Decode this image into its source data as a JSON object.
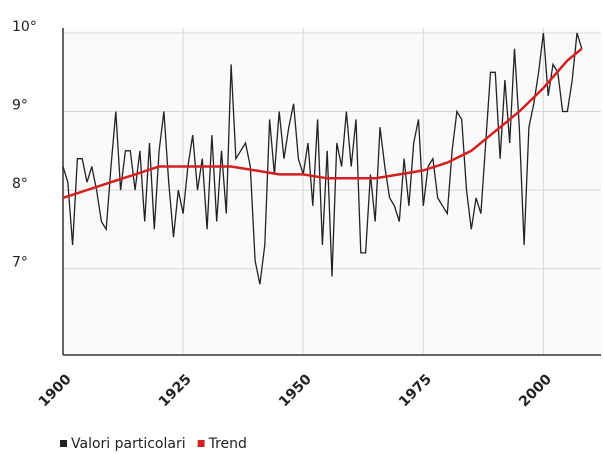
{
  "chart_data": {
    "type": "line",
    "xlim": [
      1900,
      2012
    ],
    "xticks": [
      1900,
      1925,
      1950,
      1975,
      2000
    ],
    "ylim": [
      5.9,
      10
    ],
    "yticks": [
      {
        "value": 7,
        "label": "7°"
      },
      {
        "value": 8,
        "label": "8°"
      },
      {
        "value": 9,
        "label": "9°"
      },
      {
        "value": 10,
        "label": "10°"
      }
    ],
    "grid": true,
    "series": [
      {
        "name": "Valori particolari",
        "color": "#222222",
        "x": [
          1900,
          1901,
          1902,
          1903,
          1904,
          1905,
          1906,
          1907,
          1908,
          1909,
          1910,
          1911,
          1912,
          1913,
          1914,
          1915,
          1916,
          1917,
          1918,
          1919,
          1920,
          1921,
          1922,
          1923,
          1924,
          1925,
          1926,
          1927,
          1928,
          1929,
          1930,
          1931,
          1932,
          1933,
          1934,
          1935,
          1936,
          1937,
          1938,
          1939,
          1940,
          1941,
          1942,
          1943,
          1944,
          1945,
          1946,
          1947,
          1948,
          1949,
          1950,
          1951,
          1952,
          1953,
          1954,
          1955,
          1956,
          1957,
          1958,
          1959,
          1960,
          1961,
          1962,
          1963,
          1964,
          1965,
          1966,
          1967,
          1968,
          1969,
          1970,
          1971,
          1972,
          1973,
          1974,
          1975,
          1976,
          1977,
          1978,
          1979,
          1980,
          1981,
          1982,
          1983,
          1984,
          1985,
          1986,
          1987,
          1988,
          1989,
          1990,
          1991,
          1992,
          1993,
          1994,
          1995,
          1996,
          1997,
          1998,
          1999,
          2000,
          2001,
          2002,
          2003,
          2004,
          2005,
          2006,
          2007,
          2008
        ],
        "values": [
          8.3,
          8.1,
          7.3,
          8.4,
          8.4,
          8.1,
          8.3,
          8.0,
          7.6,
          7.5,
          8.3,
          9.0,
          8.0,
          8.5,
          8.5,
          8.0,
          8.5,
          7.6,
          8.6,
          7.5,
          8.5,
          9.0,
          8.1,
          7.4,
          8.0,
          7.7,
          8.3,
          8.7,
          8.0,
          8.4,
          7.5,
          8.7,
          7.6,
          8.5,
          7.7,
          9.6,
          8.4,
          8.5,
          8.6,
          8.3,
          7.1,
          6.8,
          7.3,
          8.9,
          8.2,
          9.0,
          8.4,
          8.8,
          9.1,
          8.4,
          8.2,
          8.6,
          7.8,
          8.9,
          7.3,
          8.5,
          6.9,
          8.6,
          8.3,
          9.0,
          8.3,
          8.9,
          7.2,
          7.2,
          8.2,
          7.6,
          8.8,
          8.3,
          7.9,
          7.8,
          7.6,
          8.4,
          7.8,
          8.6,
          8.9,
          7.8,
          8.3,
          8.4,
          7.9,
          7.8,
          7.7,
          8.5,
          9.0,
          8.9,
          8.0,
          7.5,
          7.9,
          7.7,
          8.6,
          9.5,
          9.5,
          8.4,
          9.4,
          8.6,
          9.8,
          8.8,
          7.3,
          8.8,
          9.1,
          9.5,
          10.0,
          9.2,
          9.6,
          9.5,
          9.0,
          9.0,
          9.4,
          10.0,
          9.8
        ]
      },
      {
        "name": "Trend",
        "color": "#d42020",
        "x": [
          1900,
          1905,
          1910,
          1915,
          1920,
          1925,
          1930,
          1935,
          1940,
          1945,
          1950,
          1955,
          1960,
          1965,
          1970,
          1975,
          1980,
          1985,
          1990,
          1995,
          2000,
          2005,
          2008
        ],
        "values": [
          7.9,
          8.0,
          8.1,
          8.2,
          8.3,
          8.3,
          8.3,
          8.3,
          8.25,
          8.2,
          8.2,
          8.15,
          8.15,
          8.15,
          8.2,
          8.25,
          8.35,
          8.5,
          8.75,
          9.0,
          9.3,
          9.65,
          9.8
        ]
      }
    ]
  }
}
